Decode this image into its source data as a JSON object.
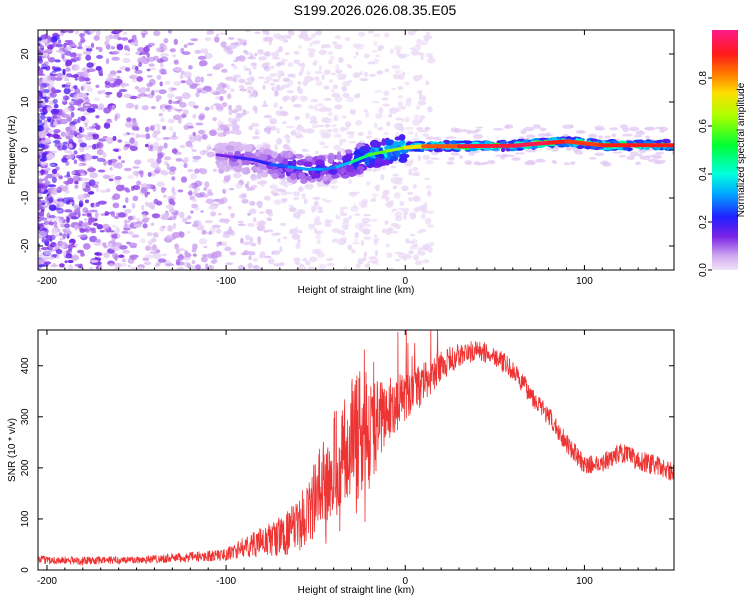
{
  "figure": {
    "title": "S199.2026.026.08.35.E05"
  },
  "chart_data": [
    {
      "type": "heatmap",
      "title": "",
      "xlabel": "Height of straight line (km)",
      "ylabel": "Frequency (Hz)",
      "xlim": [
        -205,
        150
      ],
      "ylim": [
        -25,
        25
      ],
      "xticks": [
        "-200",
        "-100",
        "0",
        "100"
      ],
      "xtick_values": [
        -200,
        -100,
        0,
        100
      ],
      "yticks": [
        "-20",
        "-10",
        "0",
        "10",
        "20"
      ],
      "ytick_values": [
        -20,
        -10,
        0,
        10,
        20
      ],
      "colorbar": {
        "label": "Normalized spectral amplitude",
        "range": [
          0,
          1
        ],
        "ticks": [
          "0.0",
          "0.2",
          "0.4",
          "0.6",
          "0.8"
        ],
        "tick_values": [
          0.0,
          0.2,
          0.4,
          0.6,
          0.8
        ]
      },
      "ridge": {
        "x": [
          -105,
          -95,
          -85,
          -75,
          -65,
          -55,
          -45,
          -38,
          -30,
          -20,
          -10,
          0,
          10,
          30,
          60,
          80,
          90,
          110,
          130,
          150
        ],
        "y": [
          -1,
          -1.5,
          -2,
          -3,
          -3.5,
          -4,
          -4,
          -3.5,
          -2.5,
          -1,
          -0.2,
          0.5,
          0.8,
          0.8,
          0.9,
          1.5,
          1.8,
          1.0,
          1.0,
          1.0
        ],
        "amplitude": [
          0.1,
          0.18,
          0.2,
          0.22,
          0.3,
          0.32,
          0.3,
          0.28,
          0.4,
          0.55,
          0.6,
          0.65,
          0.8,
          0.9,
          0.95,
          0.95,
          0.85,
          0.9,
          0.9,
          0.9
        ]
      }
    },
    {
      "type": "line",
      "title": "",
      "xlabel": "Height of straight line (km)",
      "ylabel": "SNR (10 * v/v)",
      "xlim": [
        -205,
        150
      ],
      "ylim": [
        0,
        470
      ],
      "xticks": [
        "-200",
        "-100",
        "0",
        "100"
      ],
      "xtick_values": [
        -200,
        -100,
        0,
        100
      ],
      "yticks": [
        "0",
        "100",
        "200",
        "300",
        "400"
      ],
      "ytick_values": [
        0,
        100,
        200,
        300,
        400
      ],
      "series": [
        {
          "name": "SNR",
          "color": "#ee3333",
          "x": [
            -205,
            -180,
            -150,
            -120,
            -100,
            -90,
            -80,
            -70,
            -60,
            -50,
            -40,
            -30,
            -25,
            -20,
            -15,
            -10,
            -5,
            0,
            10,
            20,
            30,
            40,
            50,
            60,
            70,
            80,
            90,
            100,
            110,
            120,
            130,
            140,
            150
          ],
          "y": [
            20,
            18,
            20,
            25,
            30,
            45,
            55,
            65,
            85,
            140,
            210,
            250,
            270,
            260,
            290,
            310,
            330,
            335,
            365,
            400,
            420,
            430,
            420,
            390,
            345,
            300,
            250,
            205,
            210,
            230,
            215,
            205,
            190
          ],
          "noise": [
            8,
            8,
            8,
            10,
            12,
            20,
            30,
            40,
            50,
            80,
            110,
            130,
            130,
            120,
            80,
            60,
            60,
            50,
            40,
            30,
            25,
            20,
            20,
            20,
            20,
            20,
            20,
            18,
            18,
            20,
            20,
            20,
            18
          ]
        }
      ]
    }
  ],
  "colors": {
    "axis": "#000000",
    "line": "#ee3333",
    "background": "#ffffff"
  }
}
